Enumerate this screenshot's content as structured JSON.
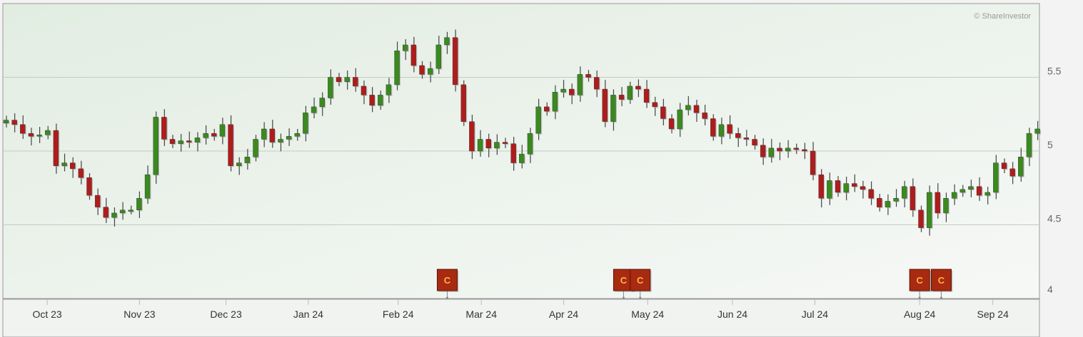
{
  "chart_data": {
    "type": "candlestick",
    "copyright": "© ShareInvestor",
    "ylim": [
      4,
      5.85
    ],
    "y_ticks": [
      "4",
      "4.5",
      "5",
      "5.5"
    ],
    "y_tick_values": [
      4,
      4.5,
      5,
      5.5
    ],
    "grid": true,
    "x_ticks": [
      {
        "label": "Oct 23",
        "bar": 4.9
      },
      {
        "label": "Nov 23",
        "bar": 16.0
      },
      {
        "label": "Dec 23",
        "bar": 26.4
      },
      {
        "label": "Jan 24",
        "bar": 36.3
      },
      {
        "label": "Feb 24",
        "bar": 47.1
      },
      {
        "label": "Mar 24",
        "bar": 57.1
      },
      {
        "label": "Apr 24",
        "bar": 67.0
      },
      {
        "label": "May 24",
        "bar": 77.1
      },
      {
        "label": "Jun 24",
        "bar": 87.3
      },
      {
        "label": "Jul 24",
        "bar": 97.2
      },
      {
        "label": "Aug 24",
        "bar": 109.8
      },
      {
        "label": "Sep 24",
        "bar": 118.6
      }
    ],
    "event_markers": [
      {
        "label": "C",
        "bar": 53.0
      },
      {
        "label": "C",
        "bar": 74.2
      },
      {
        "label": "C",
        "bar": 76.2
      },
      {
        "label": "C",
        "bar": 109.8
      },
      {
        "label": "C",
        "bar": 112.4
      }
    ],
    "open_first": 5.19,
    "closes": [
      5.21,
      5.18,
      5.12,
      5.1,
      5.11,
      5.14,
      4.9,
      4.92,
      4.88,
      4.82,
      4.7,
      4.62,
      4.55,
      4.58,
      4.6,
      4.6,
      4.68,
      4.84,
      5.23,
      5.08,
      5.05,
      5.07,
      5.06,
      5.09,
      5.12,
      5.1,
      5.18,
      4.9,
      4.92,
      4.96,
      5.08,
      5.15,
      5.06,
      5.08,
      5.1,
      5.12,
      5.26,
      5.3,
      5.36,
      5.5,
      5.47,
      5.5,
      5.44,
      5.38,
      5.31,
      5.38,
      5.45,
      5.68,
      5.72,
      5.58,
      5.52,
      5.56,
      5.72,
      5.77,
      5.45,
      5.2,
      5.0,
      5.08,
      5.02,
      5.06,
      5.05,
      4.92,
      4.98,
      5.12,
      5.3,
      5.27,
      5.4,
      5.42,
      5.38,
      5.52,
      5.5,
      5.42,
      5.2,
      5.38,
      5.35,
      5.44,
      5.42,
      5.33,
      5.3,
      5.22,
      5.15,
      5.28,
      5.31,
      5.26,
      5.22,
      5.1,
      5.18,
      5.12,
      5.09,
      5.08,
      5.04,
      4.96,
      5.02,
      5.0,
      5.02,
      5.01,
      5.0,
      4.84,
      4.68,
      4.8,
      4.72,
      4.78,
      4.76,
      4.74,
      4.68,
      4.62,
      4.66,
      4.68,
      4.76,
      4.6,
      4.48,
      4.72,
      4.58,
      4.68,
      4.72,
      4.74,
      4.76,
      4.7,
      4.72,
      4.92,
      4.88,
      4.83,
      4.96,
      5.12,
      5.15
    ],
    "colors": {
      "up": "#3a8a1e",
      "down": "#b01c1c",
      "marker": "#a82a10"
    }
  }
}
